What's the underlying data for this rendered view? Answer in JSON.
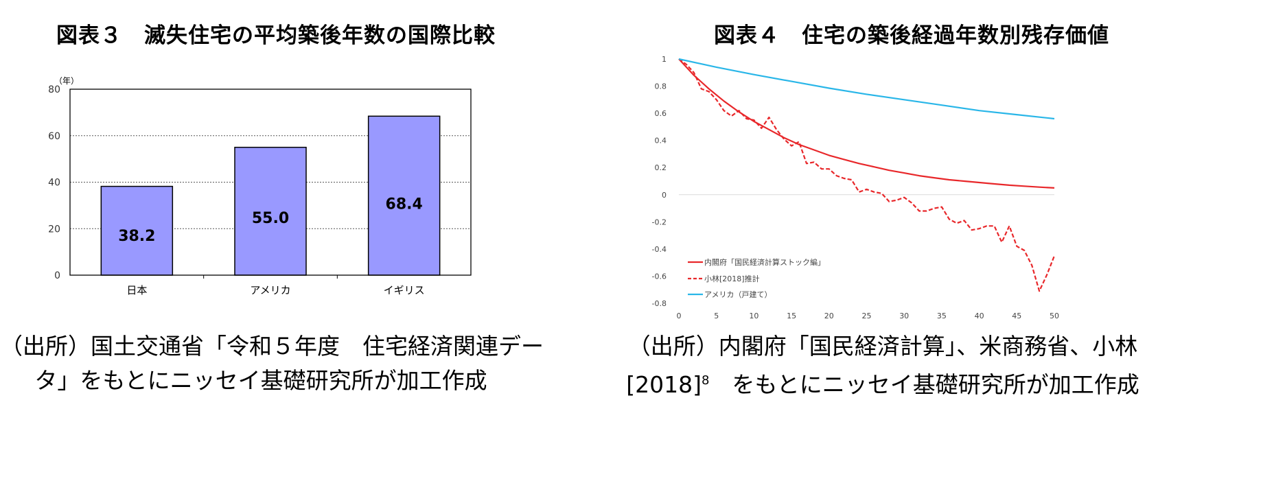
{
  "left": {
    "title": "図表３　滅失住宅の平均築後年数の国際比較",
    "source_line1": "（出所）国土交通省「令和５年度　住宅経済関連デー",
    "source_line2": "タ」をもとにニッセイ基礎研究所が加工作成",
    "chart_data": {
      "type": "bar",
      "unit_label": "（年）",
      "categories": [
        "日本",
        "アメリカ",
        "イギリス"
      ],
      "values": [
        38.2,
        55.0,
        68.4
      ],
      "value_labels": [
        "38.2",
        "55.0",
        "68.4"
      ],
      "ylim": [
        0,
        80
      ],
      "yticks": [
        0,
        20,
        40,
        60,
        80
      ],
      "bar_color": "#9999ff",
      "grid": "horizontal dotted"
    }
  },
  "right": {
    "title": "図表４　住宅の築後経過年数別残存価値",
    "source_line1": "（出所）内閣府「国民経済計算」、米商務省、小林",
    "source_line2_prefix": "[2018]",
    "source_line2_sup": "8",
    "source_line2_suffix": "　をもとにニッセイ基礎研究所が加工作成",
    "chart_data": {
      "type": "line",
      "xlim": [
        0,
        50
      ],
      "ylim": [
        -0.8,
        1
      ],
      "xticks": [
        0,
        5,
        10,
        15,
        20,
        25,
        30,
        35,
        40,
        45,
        50
      ],
      "yticks": [
        1,
        0.8,
        0.6,
        0.4,
        0.2,
        0,
        -0.2,
        -0.4,
        -0.6,
        -0.8
      ],
      "ytick_labels": [
        "1",
        "0.8",
        "0.6",
        "0.4",
        "0.2",
        "0",
        "-0.2",
        "-0.4",
        "-0.6",
        "-0.8"
      ],
      "legend_position": "bottom-left",
      "series": [
        {
          "name": "内閣府「国民経済計算ストック編」",
          "color": "#e8272a",
          "dash": "solid",
          "x": [
            0,
            2,
            4,
            6,
            8,
            10,
            12,
            14,
            16,
            18,
            20,
            22,
            24,
            26,
            28,
            30,
            32,
            34,
            36,
            38,
            40,
            42,
            44,
            46,
            48,
            50
          ],
          "y": [
            1.0,
            0.88,
            0.78,
            0.69,
            0.61,
            0.54,
            0.48,
            0.42,
            0.37,
            0.33,
            0.29,
            0.26,
            0.23,
            0.205,
            0.18,
            0.16,
            0.14,
            0.125,
            0.11,
            0.1,
            0.09,
            0.08,
            0.07,
            0.063,
            0.056,
            0.05
          ]
        },
        {
          "name": "小林[2018]推計",
          "color": "#e8272a",
          "dash": "dashed",
          "x": [
            0,
            1,
            2,
            3,
            4,
            5,
            6,
            7,
            8,
            9,
            10,
            11,
            12,
            13,
            14,
            15,
            16,
            17,
            18,
            19,
            20,
            21,
            22,
            23,
            24,
            25,
            26,
            27,
            28,
            29,
            30,
            31,
            32,
            33,
            34,
            35,
            36,
            37,
            38,
            39,
            40,
            41,
            42,
            43,
            44,
            45,
            46,
            47,
            48,
            49,
            50
          ],
          "y": [
            1.0,
            0.96,
            0.9,
            0.78,
            0.76,
            0.7,
            0.62,
            0.58,
            0.62,
            0.56,
            0.55,
            0.49,
            0.57,
            0.48,
            0.41,
            0.36,
            0.39,
            0.23,
            0.24,
            0.19,
            0.19,
            0.14,
            0.12,
            0.11,
            0.02,
            0.04,
            0.02,
            0.01,
            -0.05,
            -0.04,
            -0.02,
            -0.06,
            -0.12,
            -0.12,
            -0.1,
            -0.09,
            -0.18,
            -0.21,
            -0.19,
            -0.26,
            -0.25,
            -0.23,
            -0.23,
            -0.35,
            -0.23,
            -0.38,
            -0.41,
            -0.52,
            -0.71,
            -0.59,
            -0.45
          ]
        },
        {
          "name": "アメリカ（戸建て）",
          "color": "#29b6e8",
          "dash": "solid",
          "x": [
            0,
            5,
            10,
            15,
            20,
            25,
            30,
            35,
            40,
            45,
            50
          ],
          "y": [
            1.0,
            0.94,
            0.885,
            0.835,
            0.785,
            0.74,
            0.7,
            0.66,
            0.62,
            0.59,
            0.56
          ]
        }
      ]
    }
  }
}
